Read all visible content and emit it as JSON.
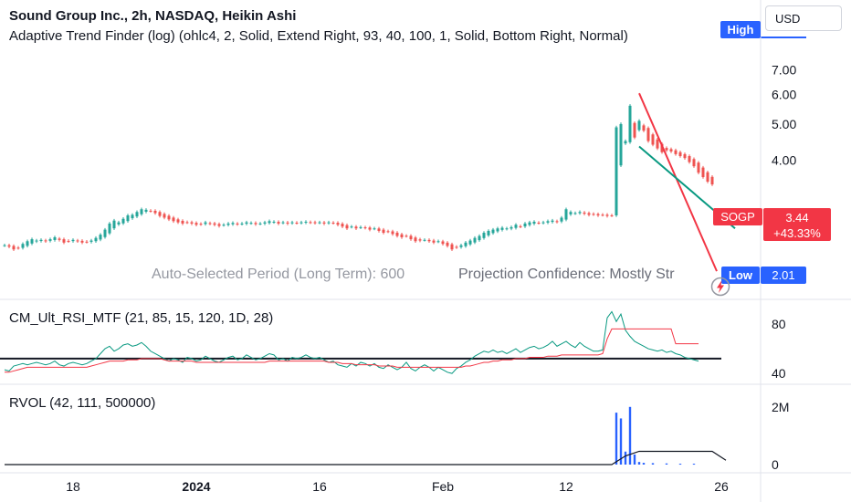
{
  "header": {
    "title": "Sound Group Inc., 2h, NASDAQ, Heikin Ashi",
    "indicator": "Adaptive Trend Finder (log) (ohlc4, 2, Solid, Extend Right, 93, 40, 100, 1, Solid, Bottom Right, Normal)",
    "currency": "USD"
  },
  "tags": {
    "high": "High",
    "low": "Low",
    "low_value": "2.01",
    "symbol": "SOGP",
    "price": "3.44",
    "change": "+43.33%"
  },
  "overlay": {
    "auto_period": "Auto-Selected Period (Long Term): 600",
    "projection": "Projection Confidence: Mostly Str"
  },
  "panes": {
    "rsi_label": "CM_Ult_RSI_MTF (21, 85, 15, 120, 1D, 28)",
    "rvol_label": "RVOL (42, 111, 500000)"
  },
  "colors": {
    "up": "#26a69a",
    "down": "#ef5350",
    "trend_upper": "#f23645",
    "trend_lower": "#089981",
    "rsi_line": "#089981",
    "rsi_signal": "#f23645",
    "rsi_level": "#131722",
    "rvol_bar": "#2962ff",
    "rvol_line": "#131722",
    "axis_text": "#131722"
  },
  "chart_data": [
    {
      "type": "candlestick",
      "name": "price",
      "price_axis_ticks": [
        4.0,
        5.0,
        6.0,
        7.0
      ],
      "price_axis_tick_labels": [
        "4.00",
        "5.00",
        "6.00",
        "7.00"
      ],
      "x_axis_tick_labels": [
        "18",
        "2024",
        "16",
        "Feb",
        "12",
        "26"
      ],
      "x_range": [
        0,
        160
      ],
      "x_ticks": [
        15,
        42,
        69,
        96,
        123,
        157
      ],
      "ylim": [
        2.0,
        7.9
      ],
      "log_scale": true,
      "up_color": "#26a69a",
      "down_color": "#ef5350",
      "series_close": [
        2.36,
        2.34,
        2.3,
        2.32,
        2.38,
        2.42,
        2.45,
        2.43,
        2.44,
        2.42,
        2.45,
        2.48,
        2.44,
        2.4,
        2.42,
        2.44,
        2.42,
        2.4,
        2.41,
        2.43,
        2.47,
        2.52,
        2.6,
        2.7,
        2.75,
        2.72,
        2.78,
        2.84,
        2.85,
        2.9,
        2.95,
        2.94,
        2.92,
        2.88,
        2.83,
        2.8,
        2.77,
        2.74,
        2.72,
        2.7,
        2.72,
        2.7,
        2.68,
        2.69,
        2.72,
        2.7,
        2.68,
        2.66,
        2.68,
        2.7,
        2.71,
        2.69,
        2.7,
        2.72,
        2.71,
        2.69,
        2.7,
        2.72,
        2.74,
        2.73,
        2.7,
        2.72,
        2.7,
        2.72,
        2.71,
        2.72,
        2.73,
        2.72,
        2.71,
        2.72,
        2.7,
        2.72,
        2.71,
        2.68,
        2.65,
        2.62,
        2.65,
        2.62,
        2.64,
        2.63,
        2.6,
        2.62,
        2.58,
        2.55,
        2.57,
        2.53,
        2.5,
        2.48,
        2.5,
        2.45,
        2.42,
        2.43,
        2.44,
        2.42,
        2.4,
        2.42,
        2.38,
        2.35,
        2.3,
        2.33,
        2.36,
        2.4,
        2.43,
        2.47,
        2.5,
        2.55,
        2.58,
        2.6,
        2.62,
        2.63,
        2.62,
        2.64,
        2.68,
        2.65,
        2.7,
        2.72,
        2.73,
        2.71,
        2.72,
        2.74,
        2.75,
        2.73,
        2.8,
        2.95,
        2.9,
        2.88,
        2.9,
        2.87,
        2.85,
        2.86,
        2.84,
        2.85,
        2.83,
        2.84,
        4.9,
        5.0,
        4.5,
        5.6,
        4.6,
        5.1,
        4.8,
        4.5,
        4.4,
        4.3,
        4.2,
        4.25,
        4.22,
        4.15,
        4.1,
        4.05,
        3.95,
        3.85,
        3.7,
        3.6,
        3.5,
        3.44
      ],
      "trend_channel": {
        "upper": {
          "start_index": 139,
          "start_value": 6.05,
          "end_index": 156,
          "end_value": 2.01
        },
        "lower": {
          "start_index": 139,
          "start_value": 4.35,
          "end_index": 160,
          "end_value": 2.62
        }
      }
    },
    {
      "type": "line",
      "name": "CM_Ult_RSI_MTF",
      "ylim": [
        32,
        94
      ],
      "axis_ticks": [
        40,
        80
      ],
      "axis_tick_labels": [
        "40",
        "80"
      ],
      "level": 52,
      "series": [
        {
          "role": "rsi",
          "values": [
            43,
            42,
            46,
            47,
            48,
            47,
            48,
            49,
            48,
            47,
            48,
            50,
            47,
            46,
            48,
            49,
            48,
            47,
            48,
            50,
            52,
            56,
            60,
            62,
            58,
            60,
            63,
            64,
            62,
            63,
            65,
            62,
            58,
            56,
            54,
            52,
            50,
            52,
            51,
            49,
            53,
            52,
            50,
            51,
            54,
            52,
            50,
            49,
            51,
            53,
            54,
            51,
            52,
            55,
            53,
            51,
            52,
            54,
            56,
            55,
            51,
            52,
            50,
            53,
            52,
            53,
            55,
            53,
            52,
            53,
            51,
            49,
            50,
            47,
            46,
            45,
            48,
            46,
            49,
            48,
            46,
            48,
            45,
            44,
            47,
            45,
            43,
            45,
            49,
            44,
            42,
            45,
            47,
            45,
            42,
            45,
            43,
            41,
            40,
            44,
            46,
            49,
            51,
            54,
            56,
            58,
            57,
            59,
            57,
            58,
            56,
            58,
            60,
            57,
            59,
            61,
            62,
            60,
            61,
            63,
            66,
            62,
            64,
            66,
            63,
            61,
            65,
            62,
            60,
            58,
            58,
            59,
            85,
            90,
            82,
            88,
            75,
            70,
            66,
            64,
            62,
            60,
            59,
            58,
            59,
            57,
            58,
            56,
            55,
            53,
            52,
            51,
            50
          ]
        },
        {
          "role": "signal",
          "values": [
            41,
            41,
            42,
            43,
            44,
            45,
            45,
            45,
            45,
            45,
            45,
            45,
            45,
            45,
            45,
            45,
            45,
            45,
            45,
            46,
            47,
            48,
            49,
            50,
            50,
            50,
            50,
            51,
            51,
            51,
            52,
            52,
            52,
            52,
            52,
            51,
            50,
            50,
            50,
            50,
            50,
            50,
            49,
            49,
            49,
            49,
            49,
            49,
            49,
            49,
            49,
            49,
            49,
            49,
            49,
            49,
            49,
            49,
            50,
            50,
            50,
            50,
            50,
            50,
            50,
            50,
            50,
            50,
            50,
            50,
            50,
            49,
            49,
            49,
            48,
            48,
            48,
            47,
            47,
            47,
            47,
            47,
            46,
            46,
            46,
            46,
            45,
            45,
            45,
            45,
            45,
            45,
            45,
            45,
            45,
            45,
            45,
            45,
            45,
            45,
            45,
            46,
            46,
            47,
            48,
            49,
            49,
            50,
            50,
            51,
            51,
            51,
            52,
            52,
            52,
            53,
            53,
            53,
            53,
            54,
            54,
            54,
            55,
            55,
            55,
            55,
            55,
            55,
            55,
            55,
            55,
            56,
            68,
            76,
            76,
            76,
            76,
            76,
            76,
            76,
            76,
            76,
            76,
            76,
            76,
            76,
            76,
            64,
            64,
            64,
            64,
            64,
            64
          ]
        }
      ]
    },
    {
      "type": "bar",
      "name": "RVOL",
      "ylim": [
        0,
        2500000
      ],
      "axis_ticks": [
        0,
        2000000
      ],
      "axis_tick_labels": [
        "0",
        "2M"
      ],
      "bars": [
        {
          "index": 134,
          "value": 1800000
        },
        {
          "index": 135,
          "value": 1600000
        },
        {
          "index": 136,
          "value": 450000
        },
        {
          "index": 137,
          "value": 2000000
        },
        {
          "index": 138,
          "value": 350000
        },
        {
          "index": 139,
          "value": 90000
        },
        {
          "index": 140,
          "value": 60000
        },
        {
          "index": 142,
          "value": 50000
        },
        {
          "index": 145,
          "value": 40000
        },
        {
          "index": 148,
          "value": 30000
        },
        {
          "index": 151,
          "value": 30000
        }
      ],
      "baseline": [
        {
          "index": 0,
          "value": 0
        },
        {
          "index": 133,
          "value": 0
        },
        {
          "index": 136,
          "value": 300000
        },
        {
          "index": 139,
          "value": 460000
        },
        {
          "index": 155,
          "value": 460000
        },
        {
          "index": 158,
          "value": 150000
        }
      ]
    }
  ]
}
